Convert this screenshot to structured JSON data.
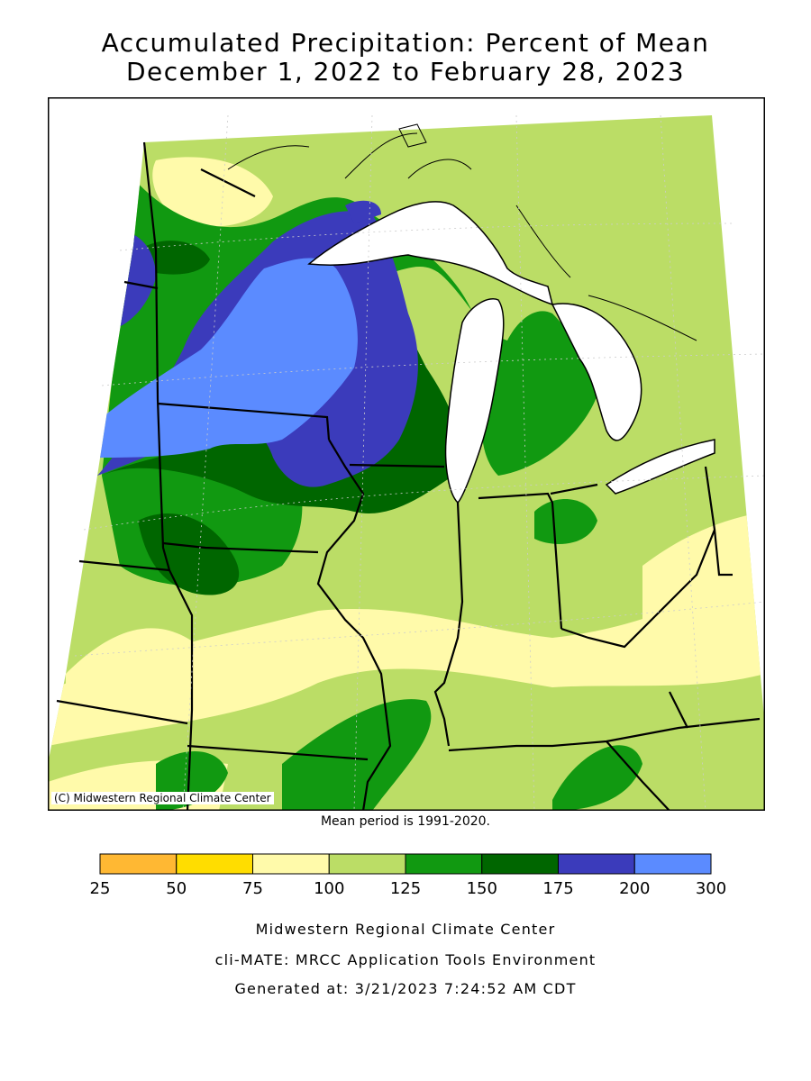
{
  "title_line1": "Accumulated Precipitation: Percent of Mean",
  "title_line2": "December 1, 2022 to February 28, 2023",
  "map_credit": "(C) Midwestern Regional Climate Center",
  "mean_period": "Mean period is 1991-2020.",
  "legend": {
    "ticks": [
      "25",
      "50",
      "75",
      "100",
      "125",
      "150",
      "175",
      "200",
      "300"
    ],
    "bins": [
      {
        "from": 25,
        "to": 50,
        "color": "#FFB833"
      },
      {
        "from": 50,
        "to": 75,
        "color": "#FFDD00"
      },
      {
        "from": 75,
        "to": 100,
        "color": "#FFFAAA"
      },
      {
        "from": 100,
        "to": 125,
        "color": "#BBDD66"
      },
      {
        "from": 125,
        "to": 150,
        "color": "#119911"
      },
      {
        "from": 150,
        "to": 175,
        "color": "#006600"
      },
      {
        "from": 175,
        "to": 200,
        "color": "#3B3BBB"
      },
      {
        "from": 200,
        "to": 300,
        "color": "#5B8BFF"
      }
    ]
  },
  "footer": {
    "line1": "Midwestern Regional Climate Center",
    "line2": "cli-MATE: MRCC Application Tools Environment",
    "line3": "Generated at: 3/21/2023 7:24:52 AM CDT"
  }
}
